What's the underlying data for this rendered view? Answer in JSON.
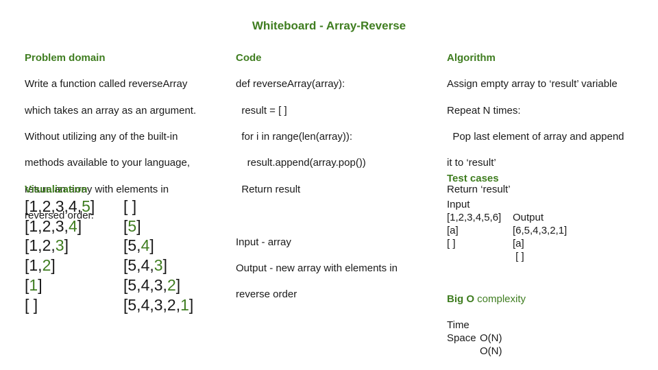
{
  "title": "Whiteboard - Array-Reverse",
  "problem_domain": {
    "heading": "Problem domain",
    "lines": [
      "Write a function called reverseArray",
      "which takes an array as an argument.",
      "Without utilizing any of the built-in",
      "methods available to your language,",
      "return an array with elements in",
      "reversed order."
    ]
  },
  "code": {
    "heading": "Code",
    "lines": [
      "def reverseArray(array):",
      "  result = [ ]",
      "  for i in range(len(array)):",
      "    result.append(array.pop())",
      "  Return result",
      "",
      "Input - array",
      "Output - new array with elements in",
      "reverse order"
    ]
  },
  "algorithm": {
    "heading": "Algorithm",
    "lines": [
      "Assign empty array to ‘result’ variable",
      "Repeat N times:",
      "  Pop last element of array and append",
      "it to ‘result’",
      "Return ‘result’"
    ]
  },
  "visualization": {
    "heading": "Visualization",
    "rows": [
      {
        "left": {
          "pre": "[1,2,3,4,",
          "hl": "5",
          "post": "]"
        },
        "right": {
          "pre": "[ ]",
          "hl": "",
          "post": ""
        }
      },
      {
        "left": {
          "pre": "[1,2,3,",
          "hl": "4",
          "post": "]"
        },
        "right": {
          "pre": "[",
          "hl": "5",
          "post": "]"
        }
      },
      {
        "left": {
          "pre": "[1,2,",
          "hl": "3",
          "post": "]"
        },
        "right": {
          "pre": "[5,",
          "hl": "4",
          "post": "]"
        }
      },
      {
        "left": {
          "pre": "[1,",
          "hl": "2",
          "post": "]"
        },
        "right": {
          "pre": "[5,4,",
          "hl": "3",
          "post": "]"
        }
      },
      {
        "left": {
          "pre": "[",
          "hl": "1",
          "post": "]"
        },
        "right": {
          "pre": "[5,4,3,",
          "hl": "2",
          "post": "]"
        }
      },
      {
        "left": {
          "pre": "[ ]",
          "hl": "",
          "post": ""
        },
        "right": {
          "pre": "[5,4,3,2,",
          "hl": "1",
          "post": "]"
        }
      }
    ]
  },
  "test_cases": {
    "heading": "Test cases",
    "columns": [
      "Input",
      "Output"
    ],
    "rows": [
      [
        "[1,2,3,4,5,6]",
        "[6,5,4,3,2,1]"
      ],
      [
        "[a]",
        "[a]"
      ],
      [
        "[ ]",
        " [ ]"
      ]
    ]
  },
  "big_o": {
    "heading_bold": "Big O",
    "heading_light": " complexity",
    "rows": [
      [
        "Time",
        "O(N)"
      ],
      [
        "Space",
        "O(N)"
      ]
    ]
  },
  "colors": {
    "accent": "#3f7d20",
    "text": "#1a1a1a",
    "background": "#ffffff"
  }
}
